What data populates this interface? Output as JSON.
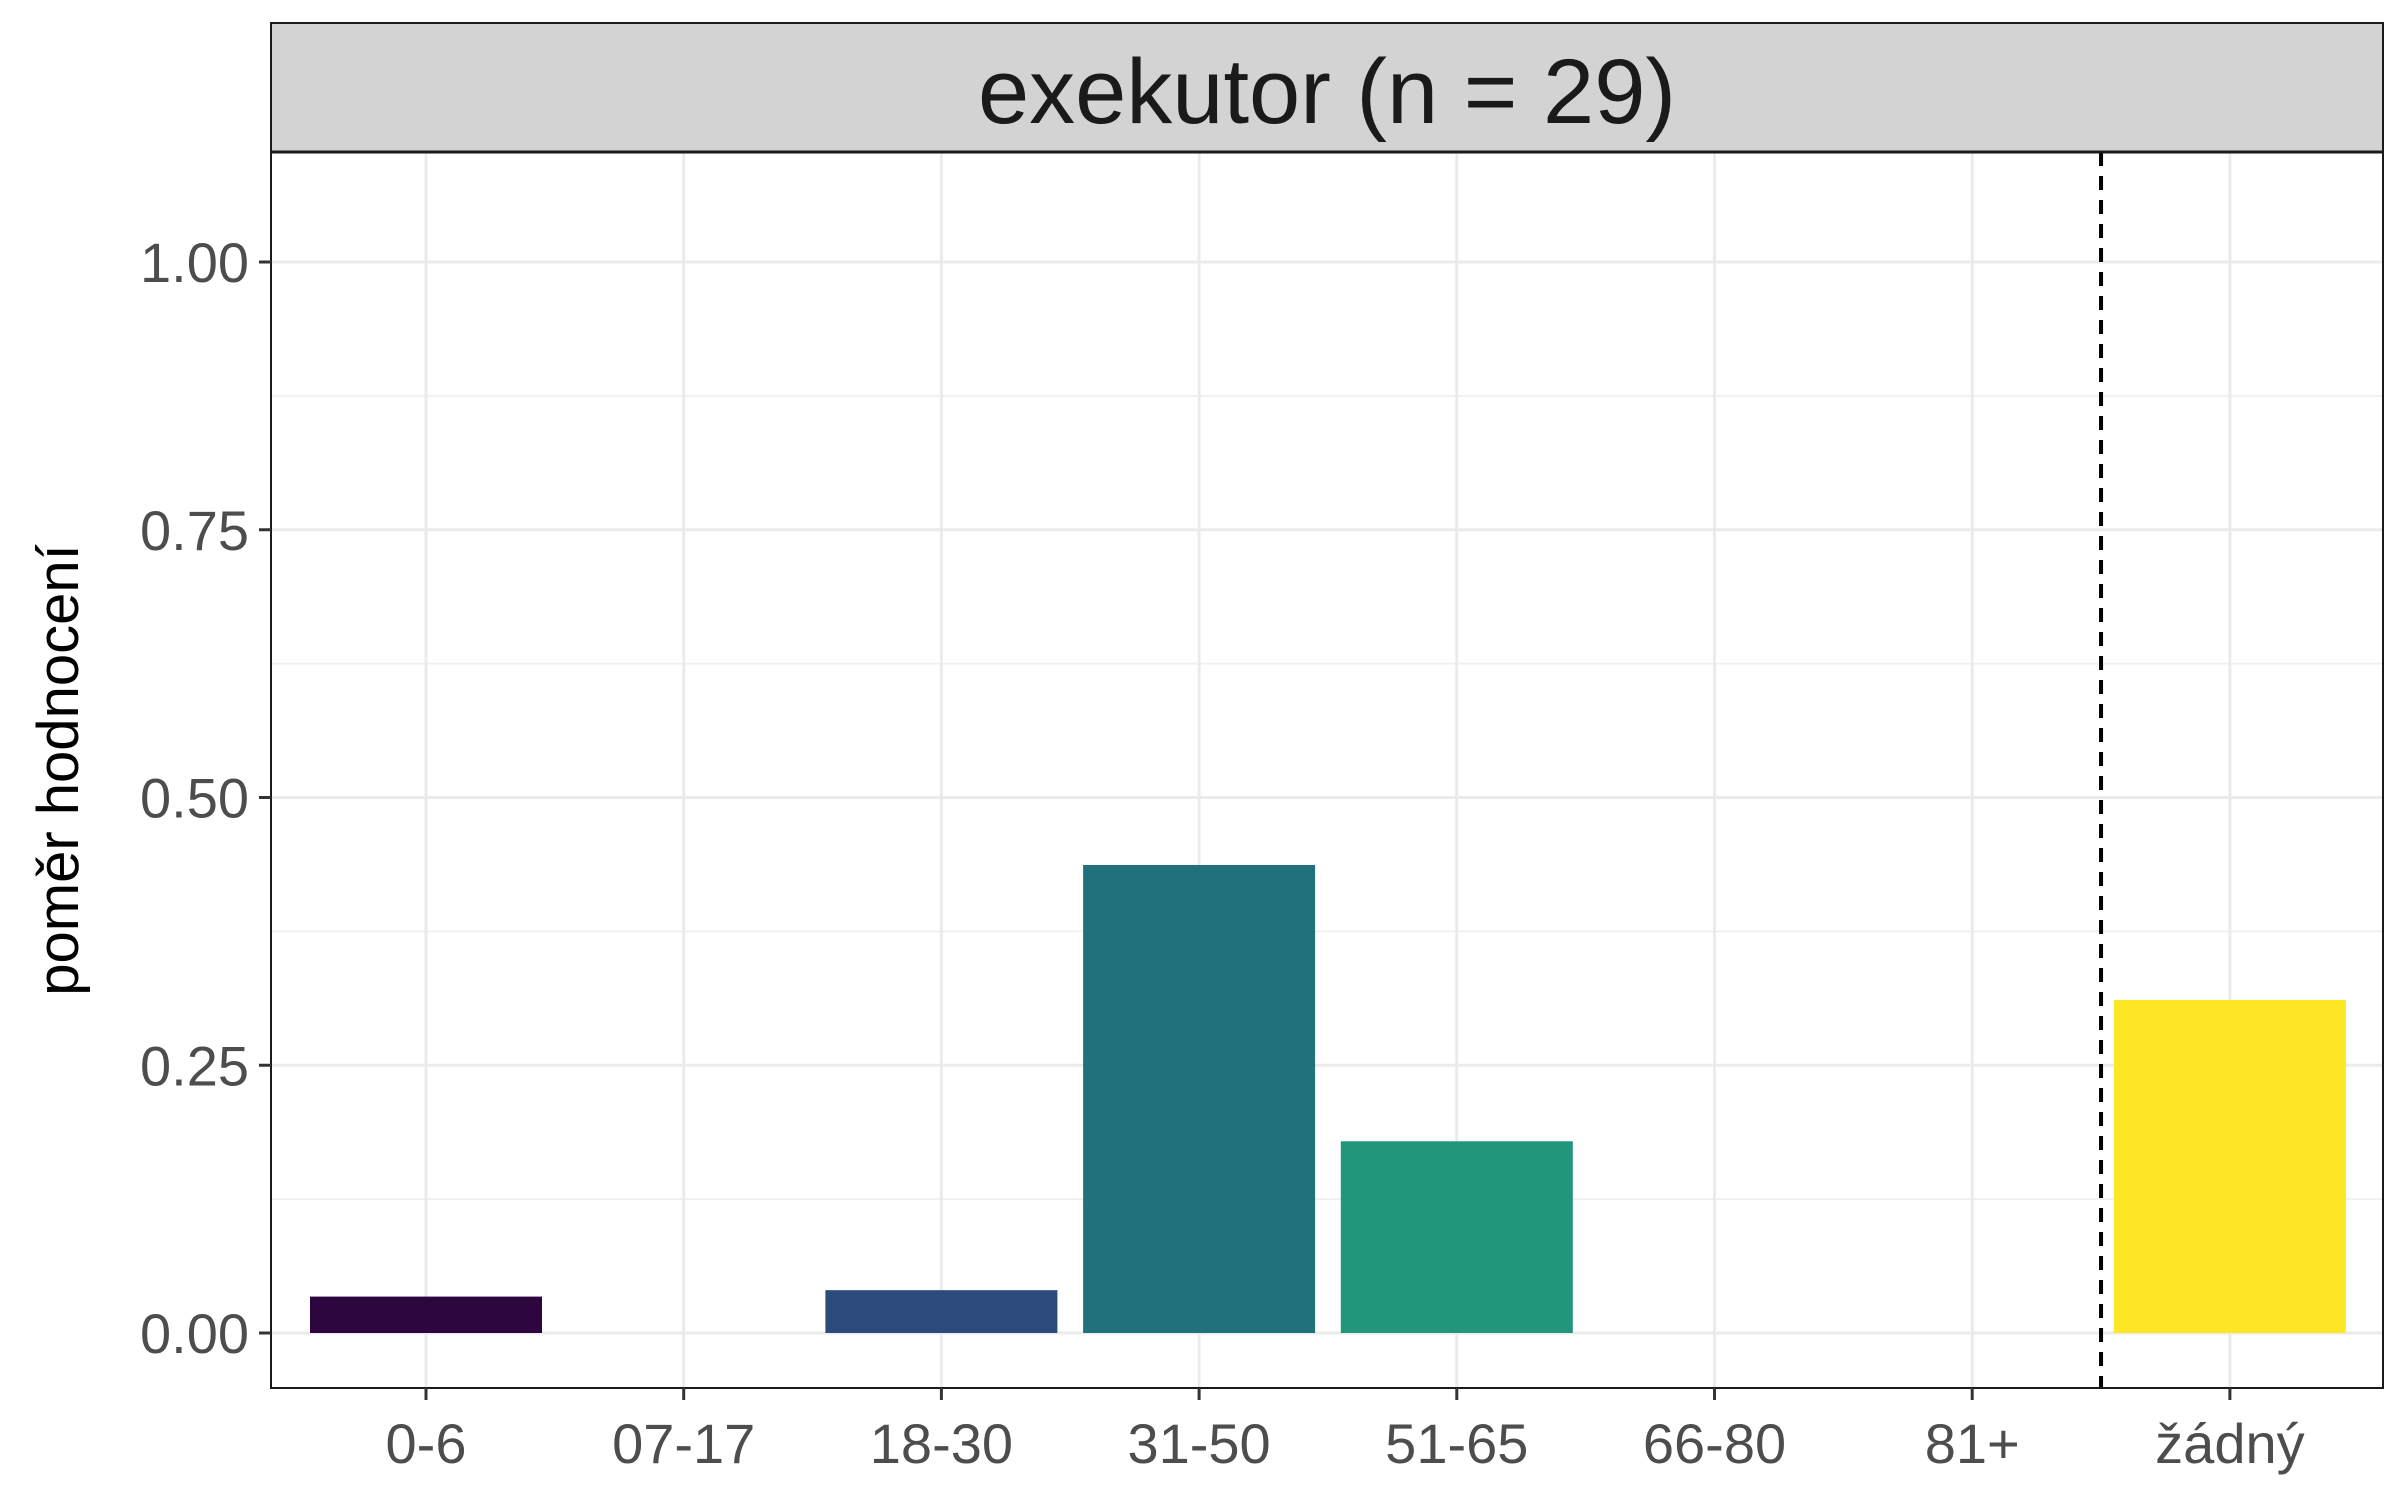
{
  "chart_data": {
    "type": "bar",
    "panel_title": "exekutor (n = 29)",
    "ylabel": "poměr hodnocení",
    "xlabel": "",
    "ylim": [
      0,
      1.1
    ],
    "y_ticks": [
      0,
      0.25,
      0.5,
      0.75,
      1.0
    ],
    "y_tick_labels": [
      "0.00",
      "0.25",
      "0.50",
      "0.75",
      "1.00"
    ],
    "categories": [
      "0-6",
      "07-17",
      "18-30",
      "31-50",
      "51-65",
      "66-80",
      "81+",
      "žádný"
    ],
    "values": [
      0.034,
      0,
      0.04,
      0.437,
      0.179,
      0,
      0,
      0.311
    ],
    "colors": [
      "#2d0640",
      "#440154",
      "#2d4a7c",
      "#21717c",
      "#21967a",
      "#5ec962",
      "#aadc32",
      "#fde725"
    ],
    "reference_line": {
      "between": [
        "81+",
        "žádný"
      ],
      "style": "dashed",
      "color": "#000000"
    },
    "grid": true,
    "legend": "none"
  }
}
